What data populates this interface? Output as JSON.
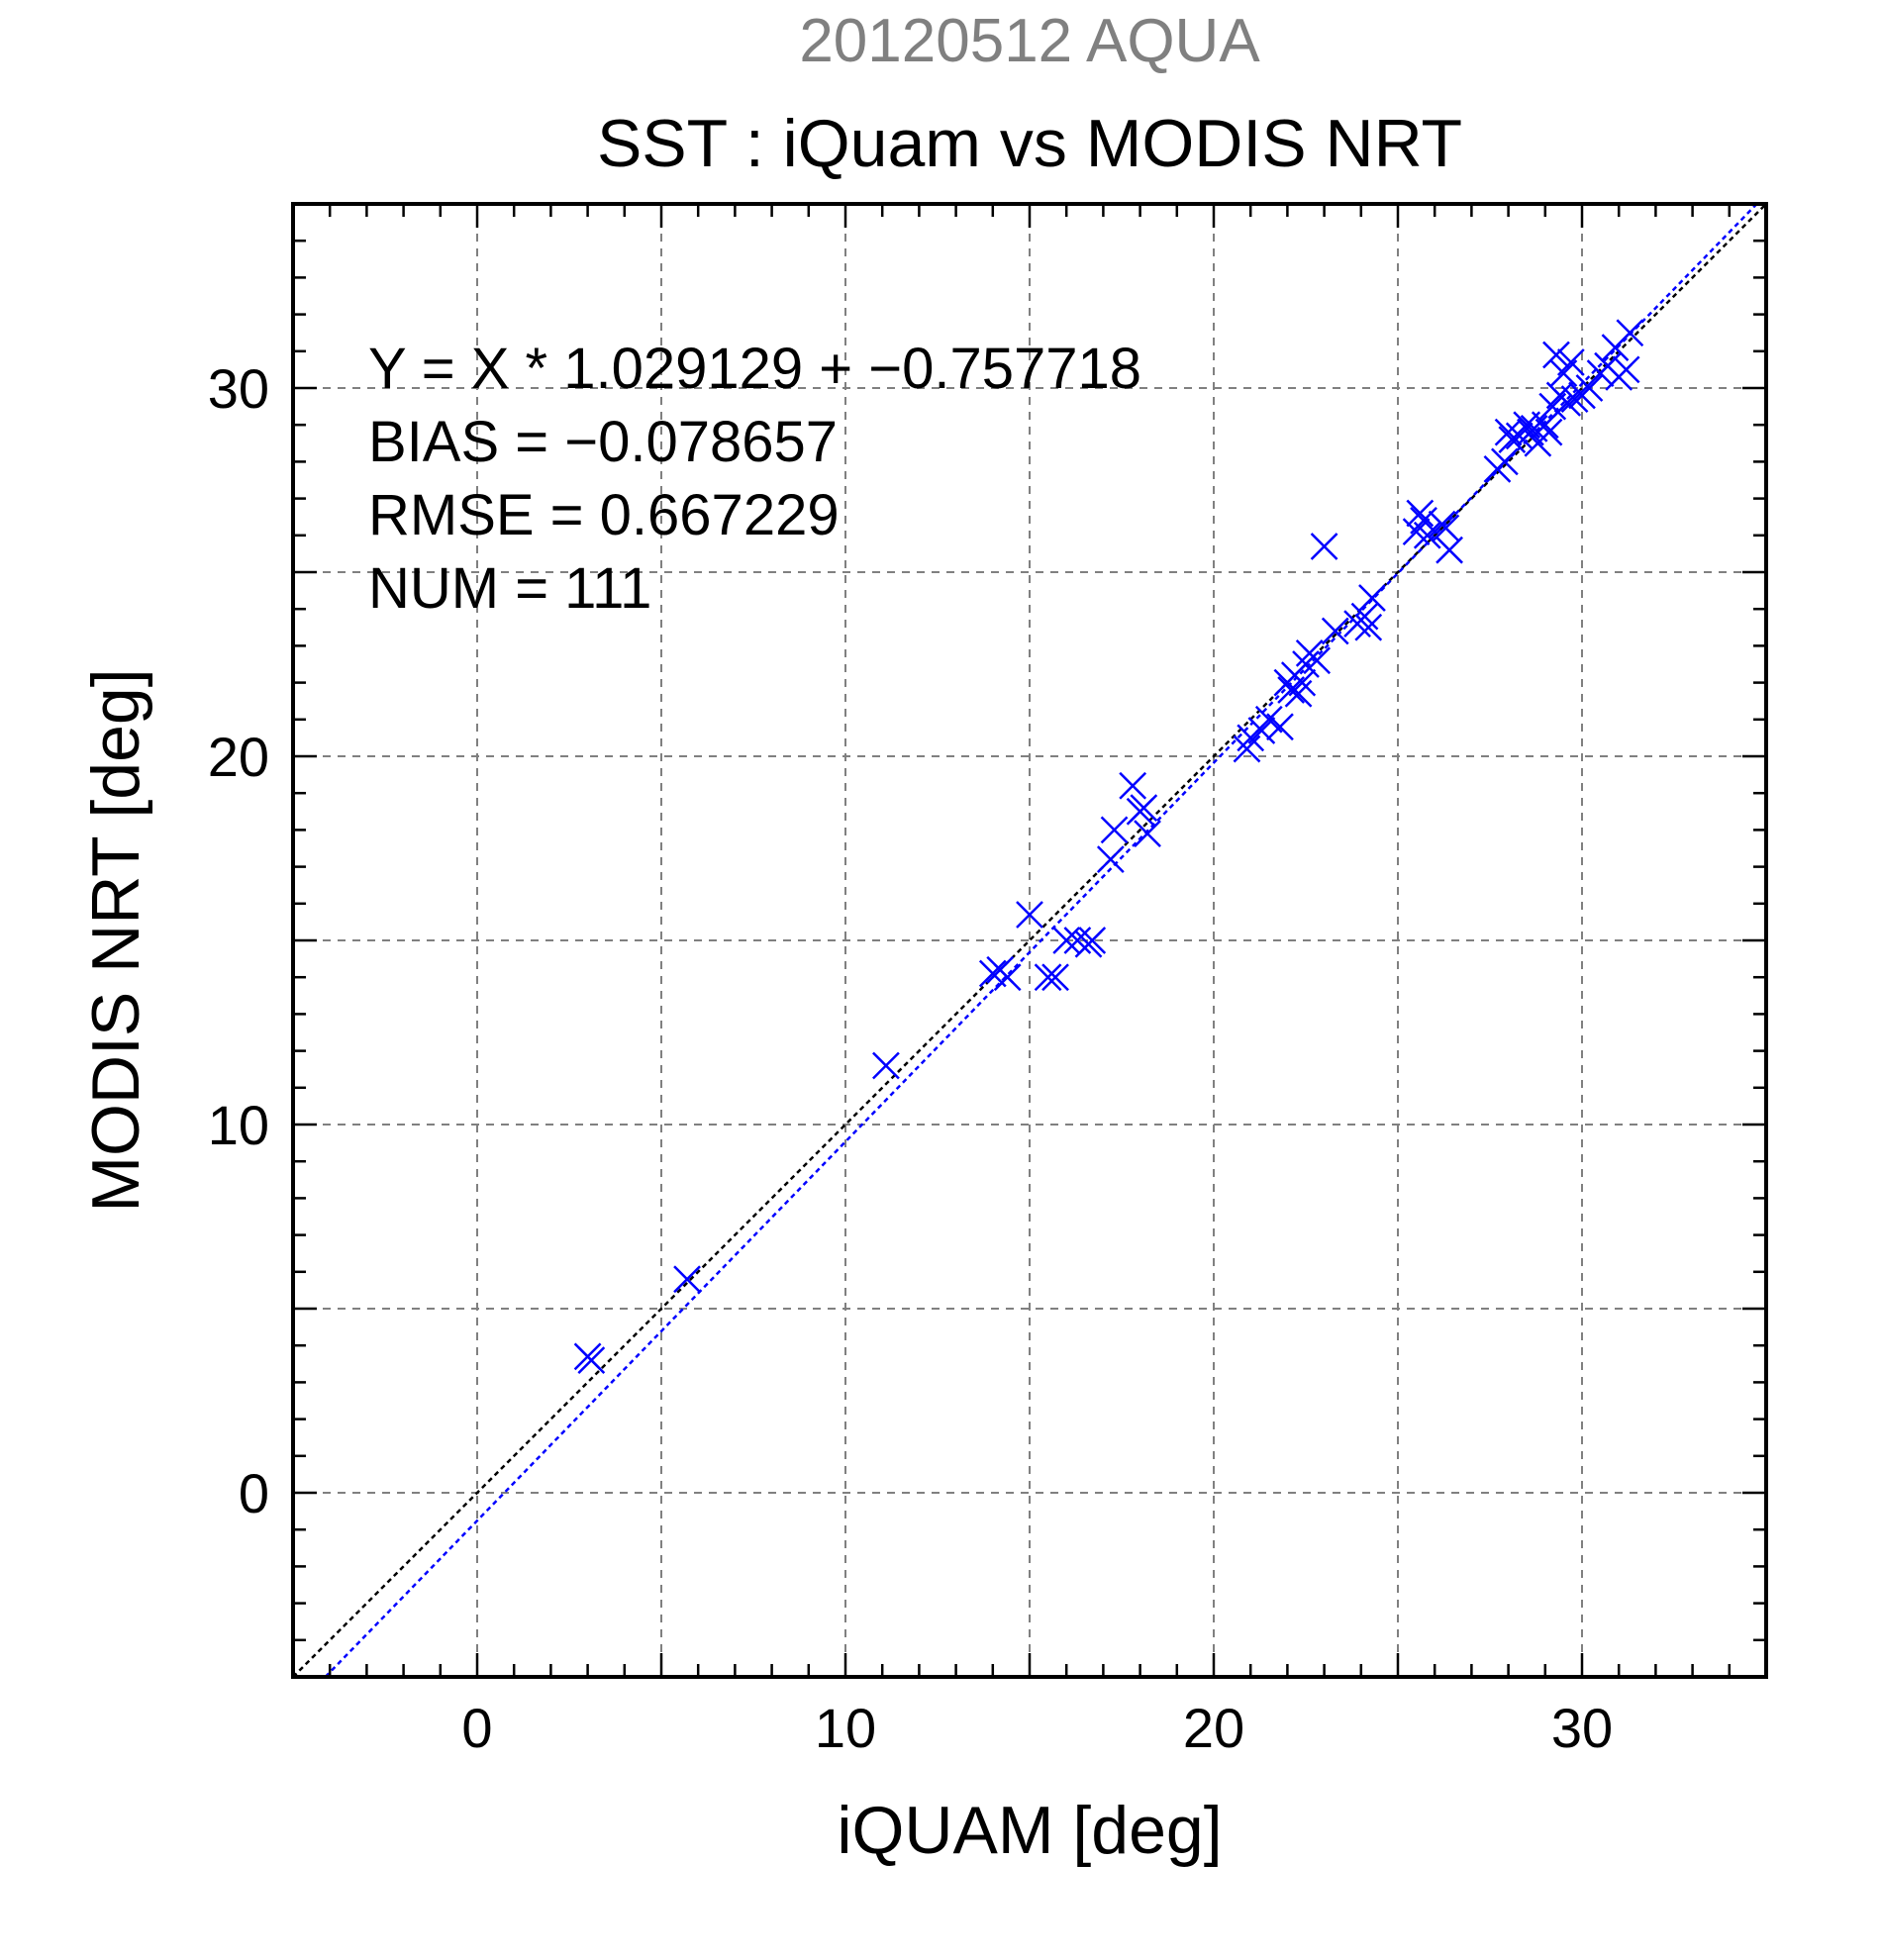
{
  "chart_data": {
    "type": "scatter",
    "supertitle": "20120512 AQUA",
    "title": "SST : iQuam vs MODIS NRT",
    "xlabel": "iQUAM [deg]",
    "ylabel": "MODIS NRT [deg]",
    "xlim": [
      -5,
      35
    ],
    "ylim": [
      -5,
      35
    ],
    "xticks": [
      0,
      10,
      20,
      30
    ],
    "yticks": [
      0,
      10,
      20,
      30
    ],
    "x_tick_labels": [
      "0",
      "10",
      "20",
      "30"
    ],
    "y_tick_labels": [
      "0",
      "10",
      "20",
      "30"
    ],
    "grid": true,
    "annotations": [
      "Y = X * 1.029129 + −0.757718",
      "BIAS = −0.078657",
      "RMSE = 0.667229",
      "NUM = 111"
    ],
    "fit_line": {
      "slope": 1.029129,
      "intercept": -0.757718,
      "color": "#0000ff"
    },
    "identity_line": {
      "slope": 1,
      "intercept": 0,
      "color": "#000000"
    },
    "marker_color": "#0000ff",
    "points": {
      "x": [
        3.0,
        3.1,
        5.7,
        11.1,
        14.0,
        14.2,
        14.4,
        15.0,
        15.5,
        15.7,
        16.0,
        16.3,
        16.6,
        16.7,
        17.2,
        17.3,
        17.8,
        18.0,
        18.1,
        18.2,
        20.9,
        21.0,
        21.3,
        21.5,
        21.8,
        22.0,
        22.1,
        22.2,
        22.3,
        22.4,
        22.5,
        22.6,
        22.8,
        23.0,
        23.3,
        23.9,
        24.1,
        24.2,
        24.3,
        25.5,
        25.6,
        25.7,
        25.8,
        26.2,
        26.3,
        26.4,
        27.7,
        27.9,
        28.0,
        28.1,
        28.3,
        28.5,
        28.6,
        28.7,
        28.8,
        29.0,
        29.1,
        29.2,
        29.3,
        29.4,
        29.5,
        29.6,
        29.7,
        29.8,
        30.0,
        30.2,
        30.5,
        30.7,
        30.9,
        31.0,
        31.2,
        31.3
      ],
      "y": [
        3.7,
        3.6,
        5.8,
        11.6,
        14.1,
        14.2,
        14.0,
        15.7,
        14.0,
        14.0,
        15.0,
        15.0,
        14.9,
        15.0,
        17.2,
        18.0,
        19.2,
        18.5,
        18.6,
        17.9,
        20.2,
        20.5,
        20.7,
        21.0,
        20.8,
        22.0,
        21.8,
        22.2,
        21.7,
        22.0,
        22.5,
        22.8,
        22.6,
        25.7,
        23.4,
        23.6,
        23.8,
        23.5,
        24.3,
        26.1,
        26.6,
        26.4,
        26.0,
        26.3,
        26.2,
        25.6,
        27.8,
        28.0,
        28.8,
        28.6,
        28.7,
        29.0,
        28.8,
        28.9,
        28.5,
        29.0,
        28.8,
        29.5,
        30.9,
        29.8,
        30.4,
        29.6,
        30.7,
        29.7,
        29.8,
        30.0,
        30.4,
        30.6,
        31.1,
        30.3,
        30.5,
        31.5
      ]
    }
  }
}
